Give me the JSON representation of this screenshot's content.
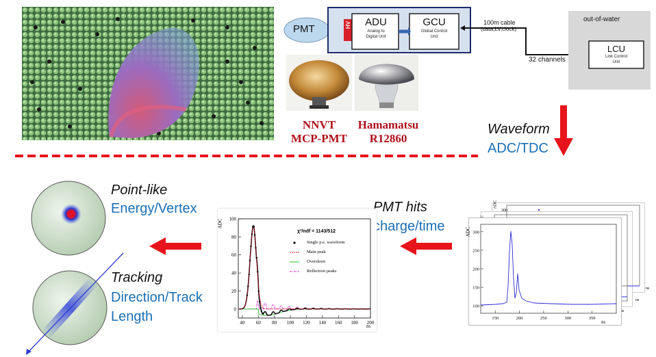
{
  "electronics": {
    "pmt": "PMT",
    "hv": "HV",
    "adu_title": "ADU",
    "adu_sub1": "Analog to",
    "adu_sub2": "Digital Unit",
    "gcu_title": "GCU",
    "gcu_sub1": "Global Control",
    "gcu_sub2": "Unit",
    "cable1": "100m cable",
    "cable2": "(data,LV,clock)",
    "out_of_water": "out-of-water",
    "channels": "32 channels",
    "lcu_title": "LCU",
    "lcu_sub1": "Link Control",
    "lcu_sub2": "Unit"
  },
  "pmts": {
    "nnvt_line1": "NNVT",
    "nnvt_line2": "MCP-PMT",
    "hama_line1": "Hamamatsu",
    "hama_line2": "R12860"
  },
  "waveform": {
    "line1": "Waveform",
    "line2": "ADC/TDC"
  },
  "hits": {
    "line1": "PMT hits",
    "line2": "charge/time"
  },
  "pointlike": {
    "line1": "Point-like",
    "line2": "Energy/Vertex"
  },
  "tracking": {
    "line1": "Tracking",
    "line2": "Direction/Track",
    "line3": "Length"
  },
  "colors": {
    "red": "#e8141c",
    "blue": "#1a6fb5",
    "green": "#c8dcc4"
  },
  "chart_data": [
    {
      "type": "line",
      "title": "χ²/ndf = 1143/512",
      "ylabel": "ADC",
      "xlabel": "ns",
      "xlim": [
        35,
        200
      ],
      "ylim": [
        -10,
        100
      ],
      "xticks": [
        "40",
        "60",
        "80",
        "100",
        "120",
        "140",
        "160",
        "180",
        "200"
      ],
      "yticks": [
        "0",
        "20",
        "40",
        "60",
        "80",
        "100"
      ],
      "legend": [
        "Single p.e. waveform",
        "Main peak",
        "Overshoot",
        "Reflection peaks"
      ]
    },
    {
      "type": "line",
      "ylabel": "ADC",
      "xlabel": "ns",
      "xlim": [
        120,
        400
      ],
      "ylim": [
        80,
        320
      ],
      "xticks": [
        "150",
        "200",
        "250",
        "300",
        "350"
      ],
      "yticks": [
        "100",
        "150",
        "200",
        "250",
        "300"
      ],
      "back_labels": [
        "ADC",
        "ADC",
        "300",
        "ns",
        "ns",
        "ns"
      ]
    }
  ]
}
